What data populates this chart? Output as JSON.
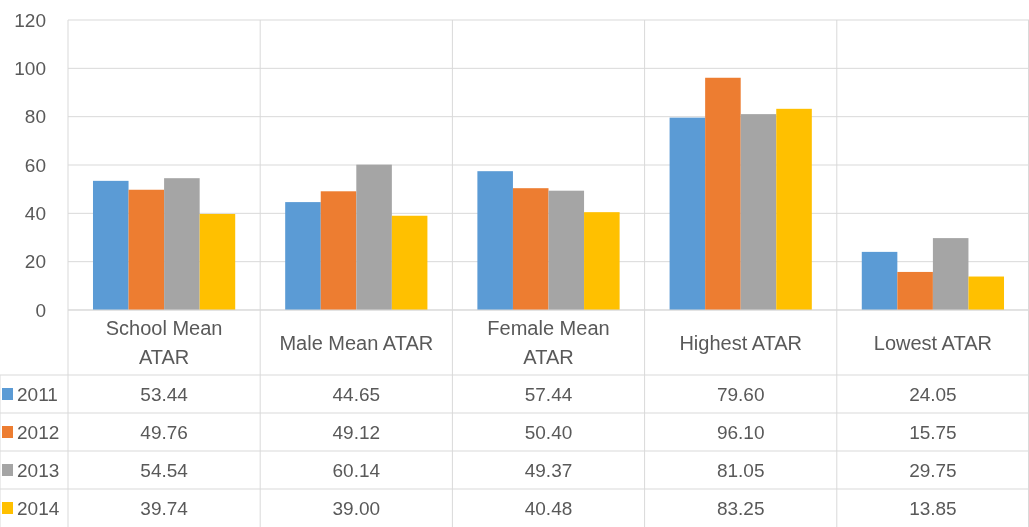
{
  "chart_data": {
    "type": "bar",
    "categories": [
      "School Mean ATAR",
      "Male Mean ATAR",
      "Female Mean ATAR",
      "Highest ATAR",
      "Lowest ATAR"
    ],
    "series": [
      {
        "name": "2011",
        "color": "#5b9bd5",
        "values": [
          53.44,
          44.65,
          57.44,
          79.6,
          24.05
        ],
        "value_labels": [
          "53.44",
          "44.65",
          "57.44",
          "79.60",
          "24.05"
        ]
      },
      {
        "name": "2012",
        "color": "#ed7d31",
        "values": [
          49.76,
          49.12,
          50.4,
          96.1,
          15.75
        ],
        "value_labels": [
          "49.76",
          "49.12",
          "50.40",
          "96.10",
          "15.75"
        ]
      },
      {
        "name": "2013",
        "color": "#a5a5a5",
        "values": [
          54.54,
          60.14,
          49.37,
          81.05,
          29.75
        ],
        "value_labels": [
          "54.54",
          "60.14",
          "49.37",
          "81.05",
          "29.75"
        ]
      },
      {
        "name": "2014",
        "color": "#ffc000",
        "values": [
          39.74,
          39,
          40.48,
          83.25,
          13.85
        ],
        "value_labels": [
          "39.74",
          "39.00",
          "40.48",
          "83.25",
          "13.85"
        ]
      }
    ],
    "ylim": [
      0,
      120
    ],
    "yticks": [
      0,
      20,
      40,
      60,
      80,
      100,
      120
    ],
    "grid": "y",
    "legend": "bottom"
  }
}
